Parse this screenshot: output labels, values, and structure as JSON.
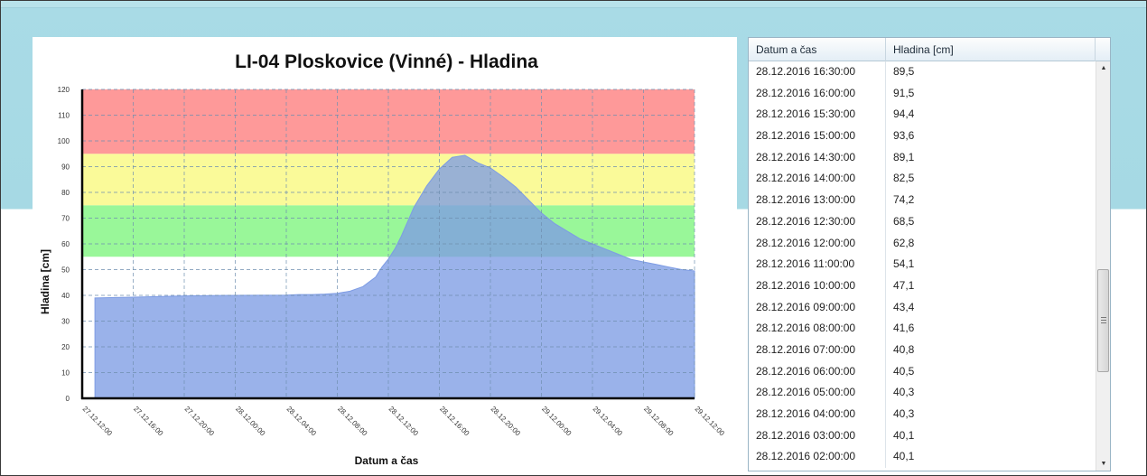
{
  "chart_data": {
    "type": "area",
    "title": "LI-04 Ploskovice (Vinné) - Hladina",
    "xlabel": "Datum a čas",
    "ylabel": "Hladina [cm]",
    "ylim": [
      0,
      120
    ],
    "yticks": [
      0,
      10,
      20,
      30,
      40,
      50,
      60,
      70,
      80,
      90,
      100,
      110,
      120
    ],
    "x_range_hours": [
      0,
      48
    ],
    "xtick_labels": [
      "27.12.12:00",
      "27.12.16:00",
      "27.12.20:00",
      "28.12.00:00",
      "28.12.04:00",
      "28.12.08:00",
      "28.12.12:00",
      "28.12.16:00",
      "28.12.20:00",
      "29.12.00:00",
      "29.12.04:00",
      "29.12.08:00",
      "29.12.12:00"
    ],
    "bands": [
      {
        "from": 55,
        "to": 75,
        "color": "#99f799"
      },
      {
        "from": 75,
        "to": 95,
        "color": "#fafa99"
      },
      {
        "from": 95,
        "to": 120,
        "color": "#fe9999"
      }
    ],
    "series": [
      {
        "color": "#7e9ce4",
        "x": [
          1,
          4,
          8,
          12,
          16,
          17,
          18,
          19,
          20,
          21,
          22,
          23,
          23.5,
          24,
          24.5,
          25,
          25.5,
          26,
          27,
          28,
          29,
          30,
          31,
          32,
          33,
          34,
          35,
          36,
          37,
          38,
          39,
          40,
          41,
          42,
          43,
          44,
          45,
          46,
          47,
          48
        ],
        "y": [
          39,
          39.3,
          39.8,
          40,
          40.1,
          40.3,
          40.3,
          40.5,
          40.8,
          41.6,
          43.4,
          47.1,
          51,
          54.1,
          58,
          62.8,
          68.5,
          74.2,
          82.5,
          89.1,
          93.6,
          94.4,
          91.5,
          89.5,
          86,
          82,
          77,
          72,
          68,
          65,
          62,
          60,
          58,
          56,
          54,
          53,
          52,
          51,
          50,
          49.5
        ]
      }
    ]
  },
  "table": {
    "headers": {
      "date": "Datum a čas",
      "level": "Hladina [cm]"
    },
    "rows": [
      {
        "date": "28.12.2016 16:30:00",
        "level": "89,5"
      },
      {
        "date": "28.12.2016 16:00:00",
        "level": "91,5"
      },
      {
        "date": "28.12.2016 15:30:00",
        "level": "94,4"
      },
      {
        "date": "28.12.2016 15:00:00",
        "level": "93,6"
      },
      {
        "date": "28.12.2016 14:30:00",
        "level": "89,1"
      },
      {
        "date": "28.12.2016 14:00:00",
        "level": "82,5"
      },
      {
        "date": "28.12.2016 13:00:00",
        "level": "74,2"
      },
      {
        "date": "28.12.2016 12:30:00",
        "level": "68,5"
      },
      {
        "date": "28.12.2016 12:00:00",
        "level": "62,8"
      },
      {
        "date": "28.12.2016 11:00:00",
        "level": "54,1"
      },
      {
        "date": "28.12.2016 10:00:00",
        "level": "47,1"
      },
      {
        "date": "28.12.2016 09:00:00",
        "level": "43,4"
      },
      {
        "date": "28.12.2016 08:00:00",
        "level": "41,6"
      },
      {
        "date": "28.12.2016 07:00:00",
        "level": "40,8"
      },
      {
        "date": "28.12.2016 06:00:00",
        "level": "40,5"
      },
      {
        "date": "28.12.2016 05:00:00",
        "level": "40,3"
      },
      {
        "date": "28.12.2016 04:00:00",
        "level": "40,3"
      },
      {
        "date": "28.12.2016 03:00:00",
        "level": "40,1"
      },
      {
        "date": "28.12.2016 02:00:00",
        "level": "40,1"
      }
    ]
  },
  "scrollbar": {
    "up_icon": "scroll-up-arrow-icon",
    "down_icon": "scroll-down-arrow-icon"
  }
}
